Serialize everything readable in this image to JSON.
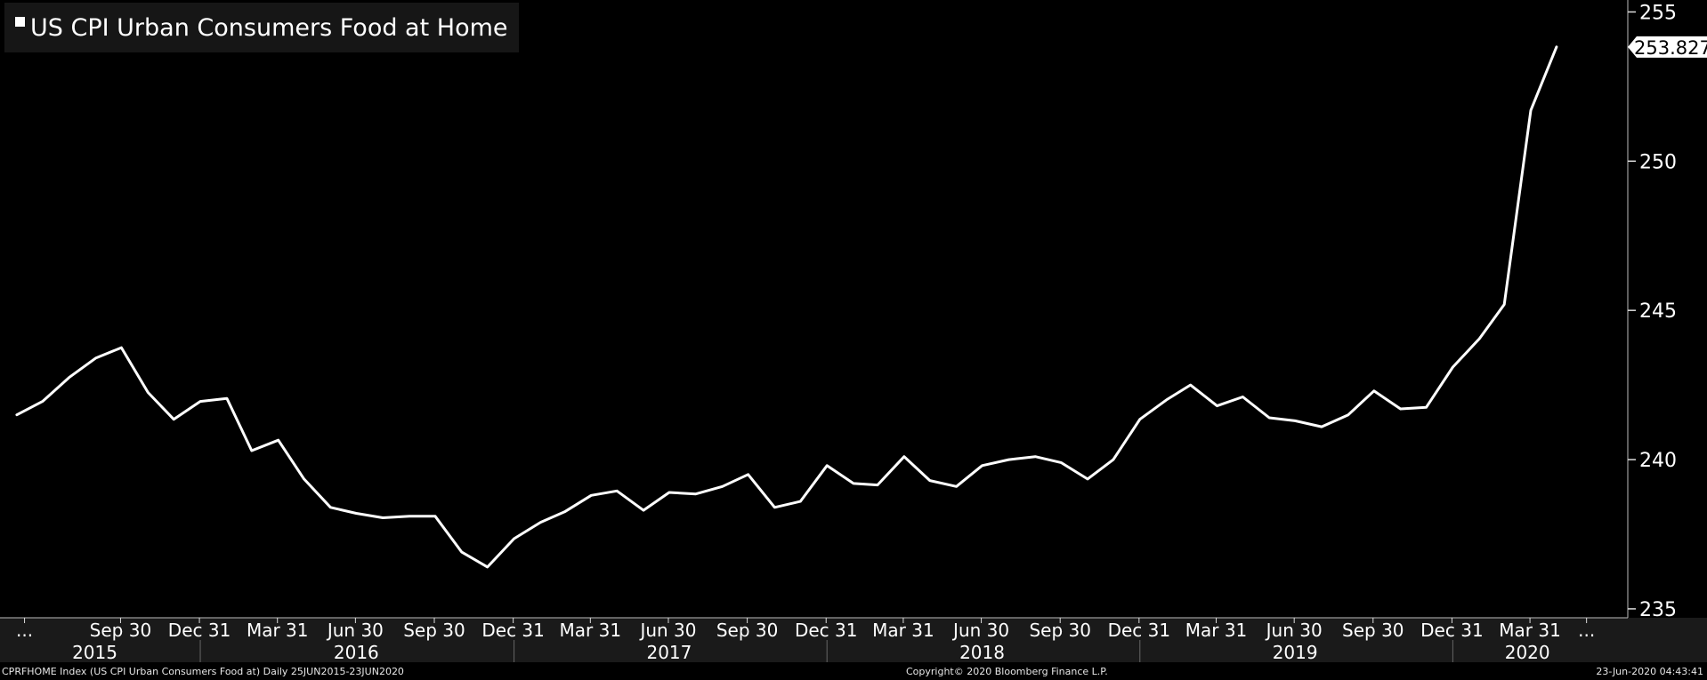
{
  "chart_data": {
    "type": "line",
    "legend": {
      "position": "top-left",
      "label": "US CPI Urban Consumers Food at Home"
    },
    "series": [
      {
        "name": "US CPI Urban Consumers Food at Home",
        "color": "#ffffff",
        "points": [
          [
            "2015-06-01",
            241.5
          ],
          [
            "2015-07-01",
            241.95
          ],
          [
            "2015-08-01",
            242.75
          ],
          [
            "2015-09-01",
            243.4
          ],
          [
            "2015-10-01",
            243.75
          ],
          [
            "2015-11-01",
            242.25
          ],
          [
            "2015-12-01",
            241.35
          ],
          [
            "2016-01-01",
            241.95
          ],
          [
            "2016-02-01",
            242.05
          ],
          [
            "2016-03-01",
            240.3
          ],
          [
            "2016-04-01",
            240.65
          ],
          [
            "2016-05-01",
            239.35
          ],
          [
            "2016-06-01",
            238.4
          ],
          [
            "2016-07-01",
            238.2
          ],
          [
            "2016-08-01",
            238.05
          ],
          [
            "2016-09-01",
            238.1
          ],
          [
            "2016-10-01",
            238.1
          ],
          [
            "2016-11-01",
            236.9
          ],
          [
            "2016-12-01",
            236.4
          ],
          [
            "2017-01-01",
            237.35
          ],
          [
            "2017-02-01",
            237.9
          ],
          [
            "2017-03-01",
            238.25
          ],
          [
            "2017-04-01",
            238.8
          ],
          [
            "2017-05-01",
            238.95
          ],
          [
            "2017-06-01",
            238.3
          ],
          [
            "2017-07-01",
            238.9
          ],
          [
            "2017-08-01",
            238.85
          ],
          [
            "2017-09-01",
            239.1
          ],
          [
            "2017-10-01",
            239.5
          ],
          [
            "2017-11-01",
            238.4
          ],
          [
            "2017-12-01",
            238.6
          ],
          [
            "2018-01-01",
            239.8
          ],
          [
            "2018-02-01",
            239.2
          ],
          [
            "2018-03-01",
            239.15
          ],
          [
            "2018-04-01",
            240.1
          ],
          [
            "2018-05-01",
            239.3
          ],
          [
            "2018-06-01",
            239.1
          ],
          [
            "2018-07-01",
            239.8
          ],
          [
            "2018-08-01",
            240.0
          ],
          [
            "2018-09-01",
            240.1
          ],
          [
            "2018-10-01",
            239.9
          ],
          [
            "2018-11-01",
            239.35
          ],
          [
            "2018-12-01",
            240.0
          ],
          [
            "2019-01-01",
            241.35
          ],
          [
            "2019-02-01",
            242.0
          ],
          [
            "2019-03-01",
            242.5
          ],
          [
            "2019-04-01",
            241.8
          ],
          [
            "2019-05-01",
            242.1
          ],
          [
            "2019-06-01",
            241.4
          ],
          [
            "2019-07-01",
            241.3
          ],
          [
            "2019-08-01",
            241.1
          ],
          [
            "2019-09-01",
            241.5
          ],
          [
            "2019-10-01",
            242.3
          ],
          [
            "2019-11-01",
            241.7
          ],
          [
            "2019-12-01",
            241.75
          ],
          [
            "2020-01-01",
            243.1
          ],
          [
            "2020-02-01",
            244.05
          ],
          [
            "2020-03-01",
            245.2
          ],
          [
            "2020-04-01",
            251.7
          ],
          [
            "2020-05-01",
            253.827
          ]
        ]
      }
    ],
    "x_range": [
      "2015-06-25",
      "2020-06-23"
    ],
    "y_axis": {
      "position": "right",
      "range": [
        234.7,
        255.4
      ],
      "ticks": [
        235,
        240,
        245,
        250,
        255
      ]
    },
    "last_value_label": "253.827",
    "x_tick_labels": [
      {
        "date": "2015-06-10",
        "label": "..."
      },
      {
        "date": "2015-09-30",
        "label": "Sep 30"
      },
      {
        "date": "2015-12-31",
        "label": "Dec 31"
      },
      {
        "date": "2016-03-31",
        "label": "Mar 31"
      },
      {
        "date": "2016-06-30",
        "label": "Jun 30"
      },
      {
        "date": "2016-09-30",
        "label": "Sep 30"
      },
      {
        "date": "2016-12-31",
        "label": "Dec 31"
      },
      {
        "date": "2017-03-31",
        "label": "Mar 31"
      },
      {
        "date": "2017-06-30",
        "label": "Jun 30"
      },
      {
        "date": "2017-09-30",
        "label": "Sep 30"
      },
      {
        "date": "2017-12-31",
        "label": "Dec 31"
      },
      {
        "date": "2018-03-31",
        "label": "Mar 31"
      },
      {
        "date": "2018-06-30",
        "label": "Jun 30"
      },
      {
        "date": "2018-09-30",
        "label": "Sep 30"
      },
      {
        "date": "2018-12-31",
        "label": "Dec 31"
      },
      {
        "date": "2019-03-31",
        "label": "Mar 31"
      },
      {
        "date": "2019-06-30",
        "label": "Jun 30"
      },
      {
        "date": "2019-09-30",
        "label": "Sep 30"
      },
      {
        "date": "2019-12-31",
        "label": "Dec 31"
      },
      {
        "date": "2020-03-31",
        "label": "Mar 31"
      },
      {
        "date": "2020-06-05",
        "label": "..."
      }
    ],
    "year_labels": [
      {
        "center": "2015-08-31",
        "label": "2015"
      },
      {
        "center": "2016-07-01",
        "label": "2016"
      },
      {
        "center": "2017-07-01",
        "label": "2017"
      },
      {
        "center": "2018-07-01",
        "label": "2018"
      },
      {
        "center": "2019-07-01",
        "label": "2019"
      },
      {
        "center": "2020-03-28",
        "label": "2020"
      }
    ],
    "year_dividers": [
      "2016-01-01",
      "2017-01-01",
      "2018-01-01",
      "2019-01-01",
      "2020-01-01"
    ],
    "grid": false,
    "colors": {
      "background": "#000000",
      "line": "#ffffff",
      "axis_band": "#1a1a1a",
      "divider": "#555555"
    }
  },
  "footer": {
    "left": "CPRFHOME Index (US CPI Urban Consumers Food at)  Daily 25JUN2015-23JUN2020",
    "center": "Copyright© 2020 Bloomberg Finance L.P.",
    "right": "23-Jun-2020 04:43:41"
  }
}
